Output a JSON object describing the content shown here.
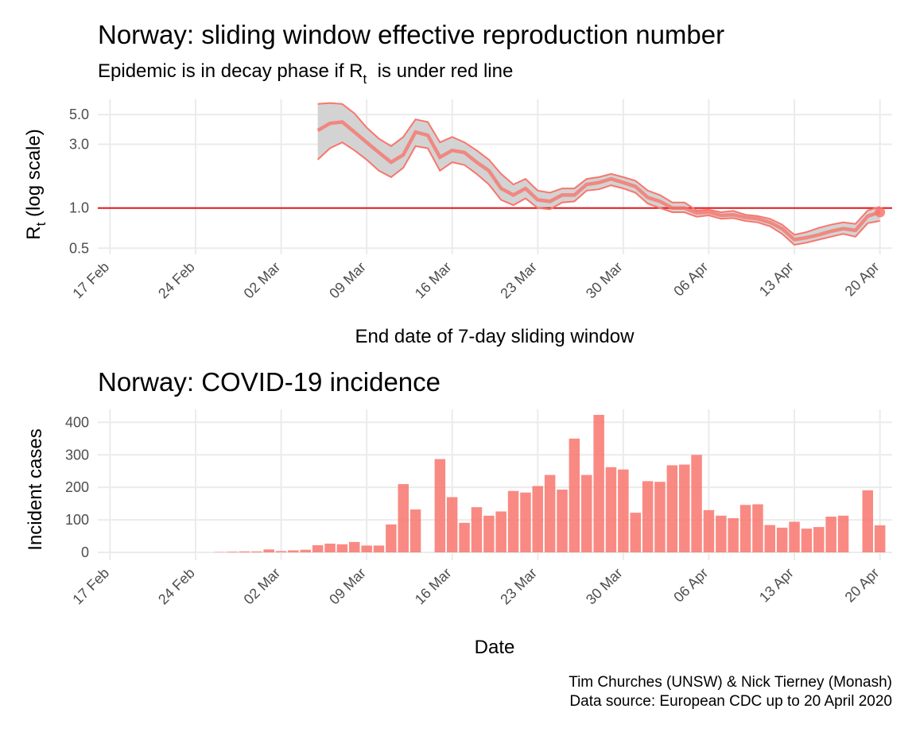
{
  "colors": {
    "accent": "#f8766d",
    "ref_line": "#e31a1c",
    "ribbon": "#d3d3d3",
    "grid": "#ebebeb"
  },
  "rt_panel": {
    "title": "Norway: sliding window effective reproduction number",
    "subtitle_main": "Epidemic is in decay phase if R",
    "subtitle_sub": "t",
    "subtitle_tail": "  is under red line",
    "ylabel_main": "R",
    "ylabel_sub": "t",
    "ylabel_tail": " (log scale)",
    "xlabel": "End date of 7-day sliding window"
  },
  "incidence_panel": {
    "title": "Norway: COVID-19 incidence",
    "ylabel": "Incident cases",
    "xlabel": "Date"
  },
  "caption": {
    "line1": "Tim Churches (UNSW) & Nick Tierney (Monash)",
    "line2": "Data source: European CDC up to 20 April 2020"
  },
  "chart_data": [
    {
      "type": "line",
      "title": "Norway: sliding window effective reproduction number",
      "subtitle": "Epidemic is in decay phase if Rt  is under red line",
      "xlabel": "End date of 7-day sliding window",
      "ylabel": "Rt (log scale)",
      "y_scale": "log",
      "ylim": [
        0.45,
        6.5
      ],
      "y_ticks": [
        0.5,
        1.0,
        3.0,
        5.0
      ],
      "y_tick_labels": [
        "0.5",
        "1.0",
        "3.0",
        "5.0"
      ],
      "x_ticks": [
        "17 Feb",
        "24 Feb",
        "02 Mar",
        "09 Mar",
        "16 Mar",
        "23 Mar",
        "30 Mar",
        "06 Apr",
        "13 Apr",
        "20 Apr"
      ],
      "x_tick_dates": [
        "2020-02-17",
        "2020-02-24",
        "2020-03-02",
        "2020-03-09",
        "2020-03-16",
        "2020-03-23",
        "2020-03-30",
        "2020-04-06",
        "2020-04-13",
        "2020-04-20"
      ],
      "xlim": [
        "2020-02-16",
        "2020-04-21"
      ],
      "grid": true,
      "reference_line": {
        "y": 1.0,
        "color": "#e31a1c"
      },
      "x": [
        "2020-03-05",
        "2020-03-06",
        "2020-03-07",
        "2020-03-08",
        "2020-03-09",
        "2020-03-10",
        "2020-03-11",
        "2020-03-12",
        "2020-03-13",
        "2020-03-14",
        "2020-03-15",
        "2020-03-16",
        "2020-03-17",
        "2020-03-18",
        "2020-03-19",
        "2020-03-20",
        "2020-03-21",
        "2020-03-22",
        "2020-03-23",
        "2020-03-24",
        "2020-03-25",
        "2020-03-26",
        "2020-03-27",
        "2020-03-28",
        "2020-03-29",
        "2020-03-30",
        "2020-03-31",
        "2020-04-01",
        "2020-04-02",
        "2020-04-03",
        "2020-04-04",
        "2020-04-05",
        "2020-04-06",
        "2020-04-07",
        "2020-04-08",
        "2020-04-09",
        "2020-04-10",
        "2020-04-11",
        "2020-04-12",
        "2020-04-13",
        "2020-04-14",
        "2020-04-15",
        "2020-04-16",
        "2020-04-17",
        "2020-04-18",
        "2020-04-19",
        "2020-04-20"
      ],
      "series": [
        {
          "role": "upper",
          "values": [
            6.0,
            6.1,
            6.0,
            5.1,
            4.0,
            3.3,
            2.9,
            3.4,
            4.6,
            4.4,
            3.1,
            3.4,
            3.1,
            2.7,
            2.3,
            1.8,
            1.5,
            1.65,
            1.35,
            1.3,
            1.4,
            1.4,
            1.65,
            1.7,
            1.8,
            1.7,
            1.6,
            1.35,
            1.25,
            1.1,
            1.1,
            0.96,
            0.97,
            0.93,
            0.95,
            0.89,
            0.87,
            0.83,
            0.75,
            0.63,
            0.66,
            0.71,
            0.75,
            0.78,
            0.76,
            0.96,
            1.02
          ]
        },
        {
          "role": "median",
          "values": [
            3.8,
            4.3,
            4.4,
            3.7,
            3.1,
            2.6,
            2.2,
            2.5,
            3.7,
            3.5,
            2.4,
            2.7,
            2.6,
            2.2,
            1.9,
            1.4,
            1.25,
            1.4,
            1.15,
            1.12,
            1.25,
            1.25,
            1.5,
            1.55,
            1.65,
            1.55,
            1.45,
            1.2,
            1.12,
            1.0,
            1.0,
            0.92,
            0.93,
            0.88,
            0.89,
            0.85,
            0.83,
            0.78,
            0.7,
            0.58,
            0.6,
            0.63,
            0.67,
            0.7,
            0.68,
            0.87,
            0.93
          ]
        },
        {
          "role": "lower",
          "values": [
            2.3,
            2.8,
            3.1,
            2.7,
            2.3,
            1.9,
            1.7,
            2.0,
            2.9,
            2.8,
            1.9,
            2.2,
            2.1,
            1.8,
            1.5,
            1.15,
            1.05,
            1.18,
            1.0,
            0.98,
            1.1,
            1.12,
            1.35,
            1.38,
            1.48,
            1.4,
            1.3,
            1.08,
            1.0,
            0.93,
            0.93,
            0.86,
            0.88,
            0.83,
            0.84,
            0.8,
            0.78,
            0.73,
            0.64,
            0.53,
            0.55,
            0.58,
            0.61,
            0.64,
            0.61,
            0.77,
            0.8
          ]
        }
      ],
      "last_point": {
        "x": "2020-04-20",
        "y": 0.93
      }
    },
    {
      "type": "bar",
      "title": "Norway: COVID-19 incidence",
      "xlabel": "Date",
      "ylabel": "Incident cases",
      "ylim": [
        0,
        440
      ],
      "y_ticks": [
        0,
        100,
        200,
        300,
        400
      ],
      "x_ticks": [
        "17 Feb",
        "24 Feb",
        "02 Mar",
        "09 Mar",
        "16 Mar",
        "23 Mar",
        "30 Mar",
        "06 Apr",
        "13 Apr",
        "20 Apr"
      ],
      "x_tick_dates": [
        "2020-02-17",
        "2020-02-24",
        "2020-03-02",
        "2020-03-09",
        "2020-03-16",
        "2020-03-23",
        "2020-03-30",
        "2020-04-06",
        "2020-04-13",
        "2020-04-20"
      ],
      "xlim": [
        "2020-02-16",
        "2020-04-21"
      ],
      "grid": true,
      "categories": [
        "2020-02-26",
        "2020-02-27",
        "2020-02-28",
        "2020-02-29",
        "2020-03-01",
        "2020-03-02",
        "2020-03-03",
        "2020-03-04",
        "2020-03-05",
        "2020-03-06",
        "2020-03-07",
        "2020-03-08",
        "2020-03-09",
        "2020-03-10",
        "2020-03-11",
        "2020-03-12",
        "2020-03-13",
        "2020-03-14",
        "2020-03-15",
        "2020-03-16",
        "2020-03-17",
        "2020-03-18",
        "2020-03-19",
        "2020-03-20",
        "2020-03-21",
        "2020-03-22",
        "2020-03-23",
        "2020-03-24",
        "2020-03-25",
        "2020-03-26",
        "2020-03-27",
        "2020-03-28",
        "2020-03-29",
        "2020-03-30",
        "2020-03-31",
        "2020-04-01",
        "2020-04-02",
        "2020-04-03",
        "2020-04-04",
        "2020-04-05",
        "2020-04-06",
        "2020-04-07",
        "2020-04-08",
        "2020-04-09",
        "2020-04-10",
        "2020-04-11",
        "2020-04-12",
        "2020-04-13",
        "2020-04-14",
        "2020-04-15",
        "2020-04-16",
        "2020-04-17",
        "2020-04-18",
        "2020-04-19",
        "2020-04-20"
      ],
      "values": [
        1,
        2,
        3,
        3,
        9,
        4,
        6,
        8,
        22,
        27,
        25,
        32,
        21,
        21,
        86,
        210,
        132,
        0,
        287,
        170,
        91,
        139,
        113,
        126,
        189,
        184,
        204,
        238,
        193,
        350,
        238,
        423,
        262,
        255,
        122,
        219,
        217,
        268,
        270,
        300,
        130,
        113,
        105,
        146,
        148,
        84,
        76,
        94,
        73,
        78,
        110,
        113,
        0,
        191,
        83
      ]
    }
  ]
}
